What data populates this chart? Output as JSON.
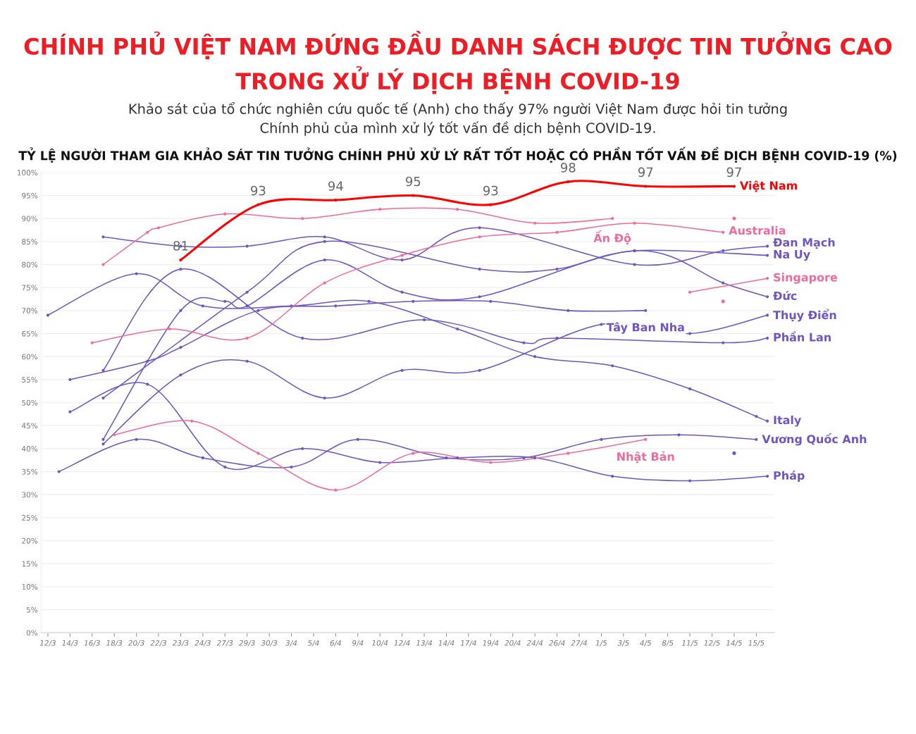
{
  "chart_data": {
    "type": "line",
    "title": "CHÍNH PHỦ VIỆT NAM ĐỨNG ĐẦU DANH SÁCH ĐƯỢC TIN TƯỞNG CAO\nTRONG XỬ LÝ DỊCH BỆNH COVID-19",
    "subtitle": "Khảo sát của tổ chức nghiên cứu quốc tế (Anh) cho thấy 97% người Việt Nam được hỏi tin tưởng\nChính phủ của mình xử lý tốt vấn đề dịch bệnh COVID-19.",
    "annotations": [
      "TỶ LỆ NGƯỜI THAM GIA KHẢO SÁT TIN TƯỞNG CHÍNH PHỦ XỬ LÝ RẤT TỐT HOẶC CÓ PHẦN TỐT VẤN ĐỀ DỊCH BỆNH COVID-19 (%)"
    ],
    "categories": [
      "12/3",
      null,
      "14/3",
      null,
      "16/3",
      null,
      "18/3",
      null,
      "20/3",
      null,
      "22/3",
      null,
      "23/3",
      null,
      "24/3",
      null,
      "27/3",
      null,
      "29/3",
      null,
      "30/3",
      null,
      "3/4",
      null,
      "5/4",
      null,
      "6/4",
      null,
      "9/4",
      null,
      "10/4",
      null,
      "12/4",
      null,
      "13/4",
      null,
      "14/4",
      null,
      "17/4",
      null,
      "19/4",
      null,
      "20/4",
      null,
      "24/4",
      null,
      "26/4",
      null,
      "27/4",
      null,
      "1/5",
      null,
      "3/5",
      null,
      "4/5",
      null,
      "8/5",
      null,
      "11/5",
      null,
      "12/5",
      null,
      "14/5",
      null,
      "15/5",
      null
    ],
    "ylim": [
      0,
      100
    ],
    "yticks": [
      {
        "value": 0,
        "label": "0%"
      },
      {
        "value": 5,
        "label": "5%"
      },
      {
        "value": 10,
        "label": "10%"
      },
      {
        "value": 15,
        "label": "15%"
      },
      {
        "value": 20,
        "label": "20%"
      },
      {
        "value": 25,
        "label": "25%"
      },
      {
        "value": 30,
        "label": "30%"
      },
      {
        "value": 35,
        "label": "35%"
      },
      {
        "value": 40,
        "label": "40%"
      },
      {
        "value": 45,
        "label": "45%"
      },
      {
        "value": 50,
        "label": "50%"
      },
      {
        "value": 55,
        "label": "55%"
      },
      {
        "value": 60,
        "label": "60%"
      },
      {
        "value": 65,
        "label": "65%"
      },
      {
        "value": 70,
        "label": "70%"
      },
      {
        "value": 75,
        "label": "75%"
      },
      {
        "value": 80,
        "label": "80%"
      },
      {
        "value": 85,
        "label": "85%"
      },
      {
        "value": 90,
        "label": "90%"
      },
      {
        "value": 95,
        "label": "95%"
      },
      {
        "value": 100,
        "label": "100%"
      }
    ],
    "grid": "y",
    "marker": "circle",
    "series": [
      {
        "name": "Đan Mạch",
        "color": "#6f55c4",
        "values": [
          null,
          null,
          null,
          null,
          null,
          86,
          null,
          null,
          null,
          null,
          null,
          null,
          84,
          null,
          null,
          null,
          null,
          null,
          84,
          null,
          null,
          null,
          null,
          null,
          null,
          86,
          null,
          null,
          null,
          null,
          null,
          null,
          81,
          null,
          null,
          null,
          null,
          null,
          null,
          88,
          null,
          null,
          null,
          null,
          null,
          null,
          null,
          null,
          null,
          null,
          null,
          null,
          null,
          80,
          null,
          null,
          null,
          null,
          null,
          null,
          null,
          83,
          null,
          null,
          null,
          84
        ]
      },
      {
        "name": "Phần Lan",
        "color": "#6f55c4",
        "values": [
          null,
          null,
          null,
          null,
          null,
          57,
          null,
          null,
          null,
          null,
          null,
          null,
          79,
          null,
          null,
          null,
          null,
          null,
          null,
          null,
          null,
          null,
          null,
          64,
          null,
          null,
          null,
          null,
          null,
          null,
          null,
          null,
          null,
          null,
          68,
          null,
          null,
          null,
          null,
          null,
          null,
          null,
          null,
          63,
          null,
          null,
          64,
          null,
          null,
          null,
          null,
          null,
          null,
          null,
          null,
          null,
          null,
          null,
          null,
          null,
          null,
          63,
          null,
          null,
          null,
          64
        ]
      },
      {
        "name": "Tây Ban Nha",
        "color": "#6f55c4",
        "values": [
          null,
          null,
          55,
          null,
          null,
          null,
          null,
          null,
          null,
          59,
          null,
          null,
          62,
          null,
          null,
          null,
          null,
          null,
          null,
          70,
          null,
          null,
          null,
          null,
          null,
          null,
          71,
          null,
          null,
          null,
          null,
          null,
          null,
          72,
          null,
          null,
          null,
          null,
          null,
          null,
          72,
          null,
          null,
          null,
          null,
          null,
          null,
          70,
          null,
          null,
          null,
          null,
          null,
          null,
          70,
          null,
          null,
          null,
          null,
          null,
          null,
          null,
          null,
          null,
          null,
          null
        ]
      },
      {
        "name": "Đức",
        "color": "#6f55c4",
        "values": [
          null,
          null,
          null,
          null,
          null,
          42,
          null,
          null,
          null,
          null,
          null,
          null,
          70,
          null,
          null,
          null,
          72,
          null,
          71,
          null,
          null,
          null,
          null,
          null,
          null,
          81,
          null,
          null,
          null,
          null,
          null,
          null,
          74,
          null,
          null,
          null,
          null,
          null,
          null,
          73,
          null,
          null,
          null,
          null,
          null,
          null,
          null,
          null,
          null,
          null,
          null,
          null,
          null,
          83,
          null,
          null,
          null,
          null,
          null,
          null,
          null,
          76,
          null,
          null,
          null,
          73
        ]
      },
      {
        "name": "Na Uy",
        "color": "#6f55c4",
        "values": [
          null,
          null,
          null,
          null,
          null,
          51,
          null,
          null,
          null,
          null,
          null,
          null,
          null,
          null,
          null,
          null,
          null,
          null,
          74,
          null,
          null,
          null,
          null,
          null,
          null,
          85,
          null,
          null,
          null,
          null,
          null,
          null,
          null,
          null,
          null,
          null,
          null,
          null,
          null,
          79,
          null,
          null,
          null,
          null,
          null,
          null,
          79,
          null,
          null,
          null,
          null,
          null,
          null,
          83,
          null,
          null,
          null,
          null,
          null,
          null,
          null,
          null,
          null,
          null,
          null,
          82
        ]
      },
      {
        "name": "Italy",
        "color": "#6f55c4",
        "values": [
          69,
          null,
          null,
          null,
          null,
          null,
          null,
          null,
          78,
          null,
          null,
          null,
          null,
          null,
          71,
          null,
          null,
          null,
          null,
          null,
          null,
          null,
          71,
          null,
          null,
          null,
          null,
          null,
          null,
          72,
          null,
          null,
          null,
          null,
          null,
          null,
          null,
          66,
          null,
          null,
          null,
          null,
          null,
          null,
          60,
          null,
          null,
          null,
          null,
          null,
          null,
          58,
          null,
          null,
          null,
          null,
          null,
          null,
          53,
          null,
          null,
          null,
          null,
          null,
          47,
          46
        ]
      },
      {
        "name": "Pháp",
        "color": "#6f55c4",
        "values": [
          null,
          null,
          48,
          null,
          null,
          null,
          null,
          null,
          null,
          54,
          null,
          null,
          null,
          null,
          null,
          null,
          36,
          null,
          null,
          null,
          null,
          null,
          null,
          40,
          null,
          null,
          null,
          null,
          null,
          null,
          37,
          null,
          null,
          null,
          null,
          null,
          null,
          38,
          null,
          null,
          null,
          null,
          null,
          null,
          38,
          null,
          null,
          null,
          null,
          null,
          null,
          34,
          null,
          null,
          null,
          null,
          null,
          null,
          33,
          null,
          null,
          null,
          null,
          null,
          null,
          34
        ]
      },
      {
        "name": "Thụy Điển",
        "color": "#6f55c4",
        "values": [
          null,
          null,
          null,
          null,
          null,
          41,
          null,
          null,
          null,
          null,
          null,
          null,
          56,
          null,
          null,
          null,
          null,
          null,
          59,
          null,
          null,
          null,
          null,
          null,
          null,
          51,
          null,
          null,
          null,
          null,
          null,
          null,
          57,
          null,
          null,
          null,
          null,
          null,
          null,
          57,
          null,
          null,
          null,
          null,
          null,
          null,
          null,
          null,
          null,
          null,
          67,
          null,
          null,
          null,
          null,
          null,
          null,
          null,
          65,
          null,
          null,
          null,
          null,
          null,
          null,
          69
        ]
      },
      {
        "name": "Vương Quốc Anh",
        "color": "#6f55c4",
        "values": [
          null,
          35,
          null,
          null,
          null,
          null,
          null,
          null,
          42,
          null,
          null,
          null,
          null,
          null,
          38,
          null,
          null,
          null,
          null,
          null,
          null,
          null,
          36,
          null,
          null,
          null,
          null,
          null,
          42,
          null,
          null,
          null,
          null,
          null,
          null,
          null,
          38,
          null,
          null,
          null,
          null,
          null,
          null,
          38,
          null,
          null,
          null,
          null,
          null,
          null,
          42,
          null,
          null,
          null,
          null,
          null,
          null,
          43,
          null,
          null,
          null,
          null,
          null,
          null,
          42,
          null
        ]
      },
      {
        "name": "Ấn Độ",
        "color": "#f06a9c",
        "values": [
          null,
          null,
          null,
          null,
          null,
          80,
          null,
          null,
          null,
          87,
          88,
          null,
          null,
          null,
          null,
          null,
          91,
          null,
          null,
          null,
          null,
          null,
          null,
          90,
          null,
          null,
          null,
          null,
          null,
          null,
          92,
          null,
          null,
          null,
          null,
          null,
          null,
          92,
          null,
          null,
          null,
          null,
          null,
          null,
          89,
          null,
          null,
          null,
          null,
          null,
          null,
          90,
          null,
          null,
          null,
          null,
          null,
          null,
          null,
          null,
          null,
          null,
          null,
          null,
          null,
          null
        ]
      },
      {
        "name": "Australia",
        "color": "#f06a9c",
        "values": [
          null,
          null,
          null,
          null,
          63,
          null,
          null,
          null,
          null,
          null,
          null,
          66,
          null,
          null,
          null,
          null,
          null,
          null,
          64,
          null,
          null,
          null,
          null,
          null,
          null,
          76,
          null,
          null,
          null,
          null,
          null,
          null,
          82,
          null,
          null,
          null,
          null,
          null,
          null,
          86,
          null,
          null,
          null,
          null,
          null,
          null,
          87,
          null,
          null,
          null,
          null,
          null,
          null,
          89,
          null,
          null,
          null,
          null,
          null,
          null,
          null,
          87,
          null,
          null,
          null,
          null
        ]
      },
      {
        "name": "Nhật Bản",
        "color": "#f06a9c",
        "values": [
          null,
          null,
          null,
          null,
          null,
          null,
          43,
          null,
          null,
          null,
          null,
          null,
          null,
          46,
          null,
          null,
          null,
          null,
          null,
          39,
          null,
          null,
          null,
          null,
          null,
          null,
          31,
          null,
          null,
          null,
          null,
          null,
          null,
          39,
          null,
          null,
          null,
          null,
          null,
          null,
          37,
          null,
          null,
          null,
          null,
          null,
          null,
          39,
          null,
          null,
          null,
          null,
          null,
          null,
          42,
          null,
          null,
          null,
          null,
          null,
          null,
          null,
          null,
          null,
          null,
          null
        ]
      },
      {
        "name": "Singapore",
        "color": "#f06a9c",
        "values": [
          null,
          null,
          null,
          null,
          null,
          null,
          null,
          null,
          null,
          null,
          null,
          null,
          null,
          null,
          null,
          null,
          null,
          null,
          null,
          null,
          null,
          null,
          null,
          null,
          null,
          null,
          null,
          null,
          null,
          null,
          null,
          null,
          null,
          null,
          null,
          null,
          null,
          null,
          null,
          null,
          null,
          null,
          null,
          null,
          null,
          null,
          null,
          null,
          null,
          null,
          null,
          null,
          null,
          null,
          null,
          null,
          null,
          null,
          74,
          null,
          null,
          null,
          null,
          null,
          null,
          77
        ]
      },
      {
        "type": "scatter",
        "color": "#f06a9c",
        "values": [
          null,
          null,
          null,
          null,
          null,
          null,
          null,
          null,
          null,
          null,
          null,
          null,
          null,
          null,
          null,
          null,
          null,
          null,
          null,
          null,
          null,
          null,
          null,
          null,
          null,
          null,
          null,
          null,
          null,
          null,
          null,
          null,
          null,
          null,
          null,
          null,
          null,
          null,
          null,
          null,
          null,
          null,
          null,
          null,
          null,
          null,
          null,
          null,
          null,
          null,
          null,
          null,
          null,
          null,
          null,
          null,
          null,
          null,
          null,
          null,
          null,
          72,
          90,
          null,
          null,
          null
        ]
      },
      {
        "type": "scatter",
        "color": "#6f55c4",
        "values": [
          null,
          null,
          null,
          null,
          null,
          null,
          null,
          null,
          null,
          null,
          null,
          null,
          null,
          null,
          null,
          null,
          null,
          null,
          null,
          null,
          null,
          null,
          null,
          null,
          null,
          null,
          null,
          null,
          null,
          null,
          null,
          null,
          null,
          null,
          null,
          null,
          null,
          null,
          null,
          null,
          null,
          null,
          null,
          null,
          null,
          null,
          null,
          null,
          null,
          null,
          null,
          null,
          null,
          null,
          null,
          null,
          null,
          null,
          null,
          null,
          null,
          null,
          39,
          null,
          null,
          null
        ]
      },
      {
        "name": "Việt Nam",
        "color": "#ff0000",
        "values": [
          null,
          null,
          null,
          null,
          null,
          null,
          null,
          null,
          null,
          null,
          null,
          null,
          81,
          null,
          null,
          null,
          null,
          null,
          null,
          93,
          null,
          null,
          null,
          null,
          null,
          null,
          94,
          null,
          null,
          null,
          null,
          null,
          null,
          95,
          null,
          null,
          null,
          null,
          null,
          null,
          93,
          null,
          null,
          null,
          null,
          null,
          null,
          98,
          null,
          null,
          null,
          null,
          null,
          null,
          97,
          null,
          null,
          null,
          null,
          null,
          null,
          null,
          97,
          null,
          null,
          null
        ],
        "value_labels": [
          null,
          null,
          null,
          null,
          null,
          null,
          null,
          null,
          null,
          null,
          null,
          null,
          "81",
          null,
          null,
          null,
          null,
          null,
          null,
          "93",
          null,
          null,
          null,
          null,
          null,
          null,
          "94",
          null,
          null,
          null,
          null,
          null,
          null,
          "95",
          null,
          null,
          null,
          null,
          null,
          null,
          "93",
          null,
          null,
          null,
          null,
          null,
          null,
          "98",
          null,
          null,
          null,
          null,
          null,
          null,
          "97",
          null,
          null,
          null,
          null,
          null,
          null,
          null,
          "97",
          null,
          null,
          null
        ]
      }
    ]
  }
}
